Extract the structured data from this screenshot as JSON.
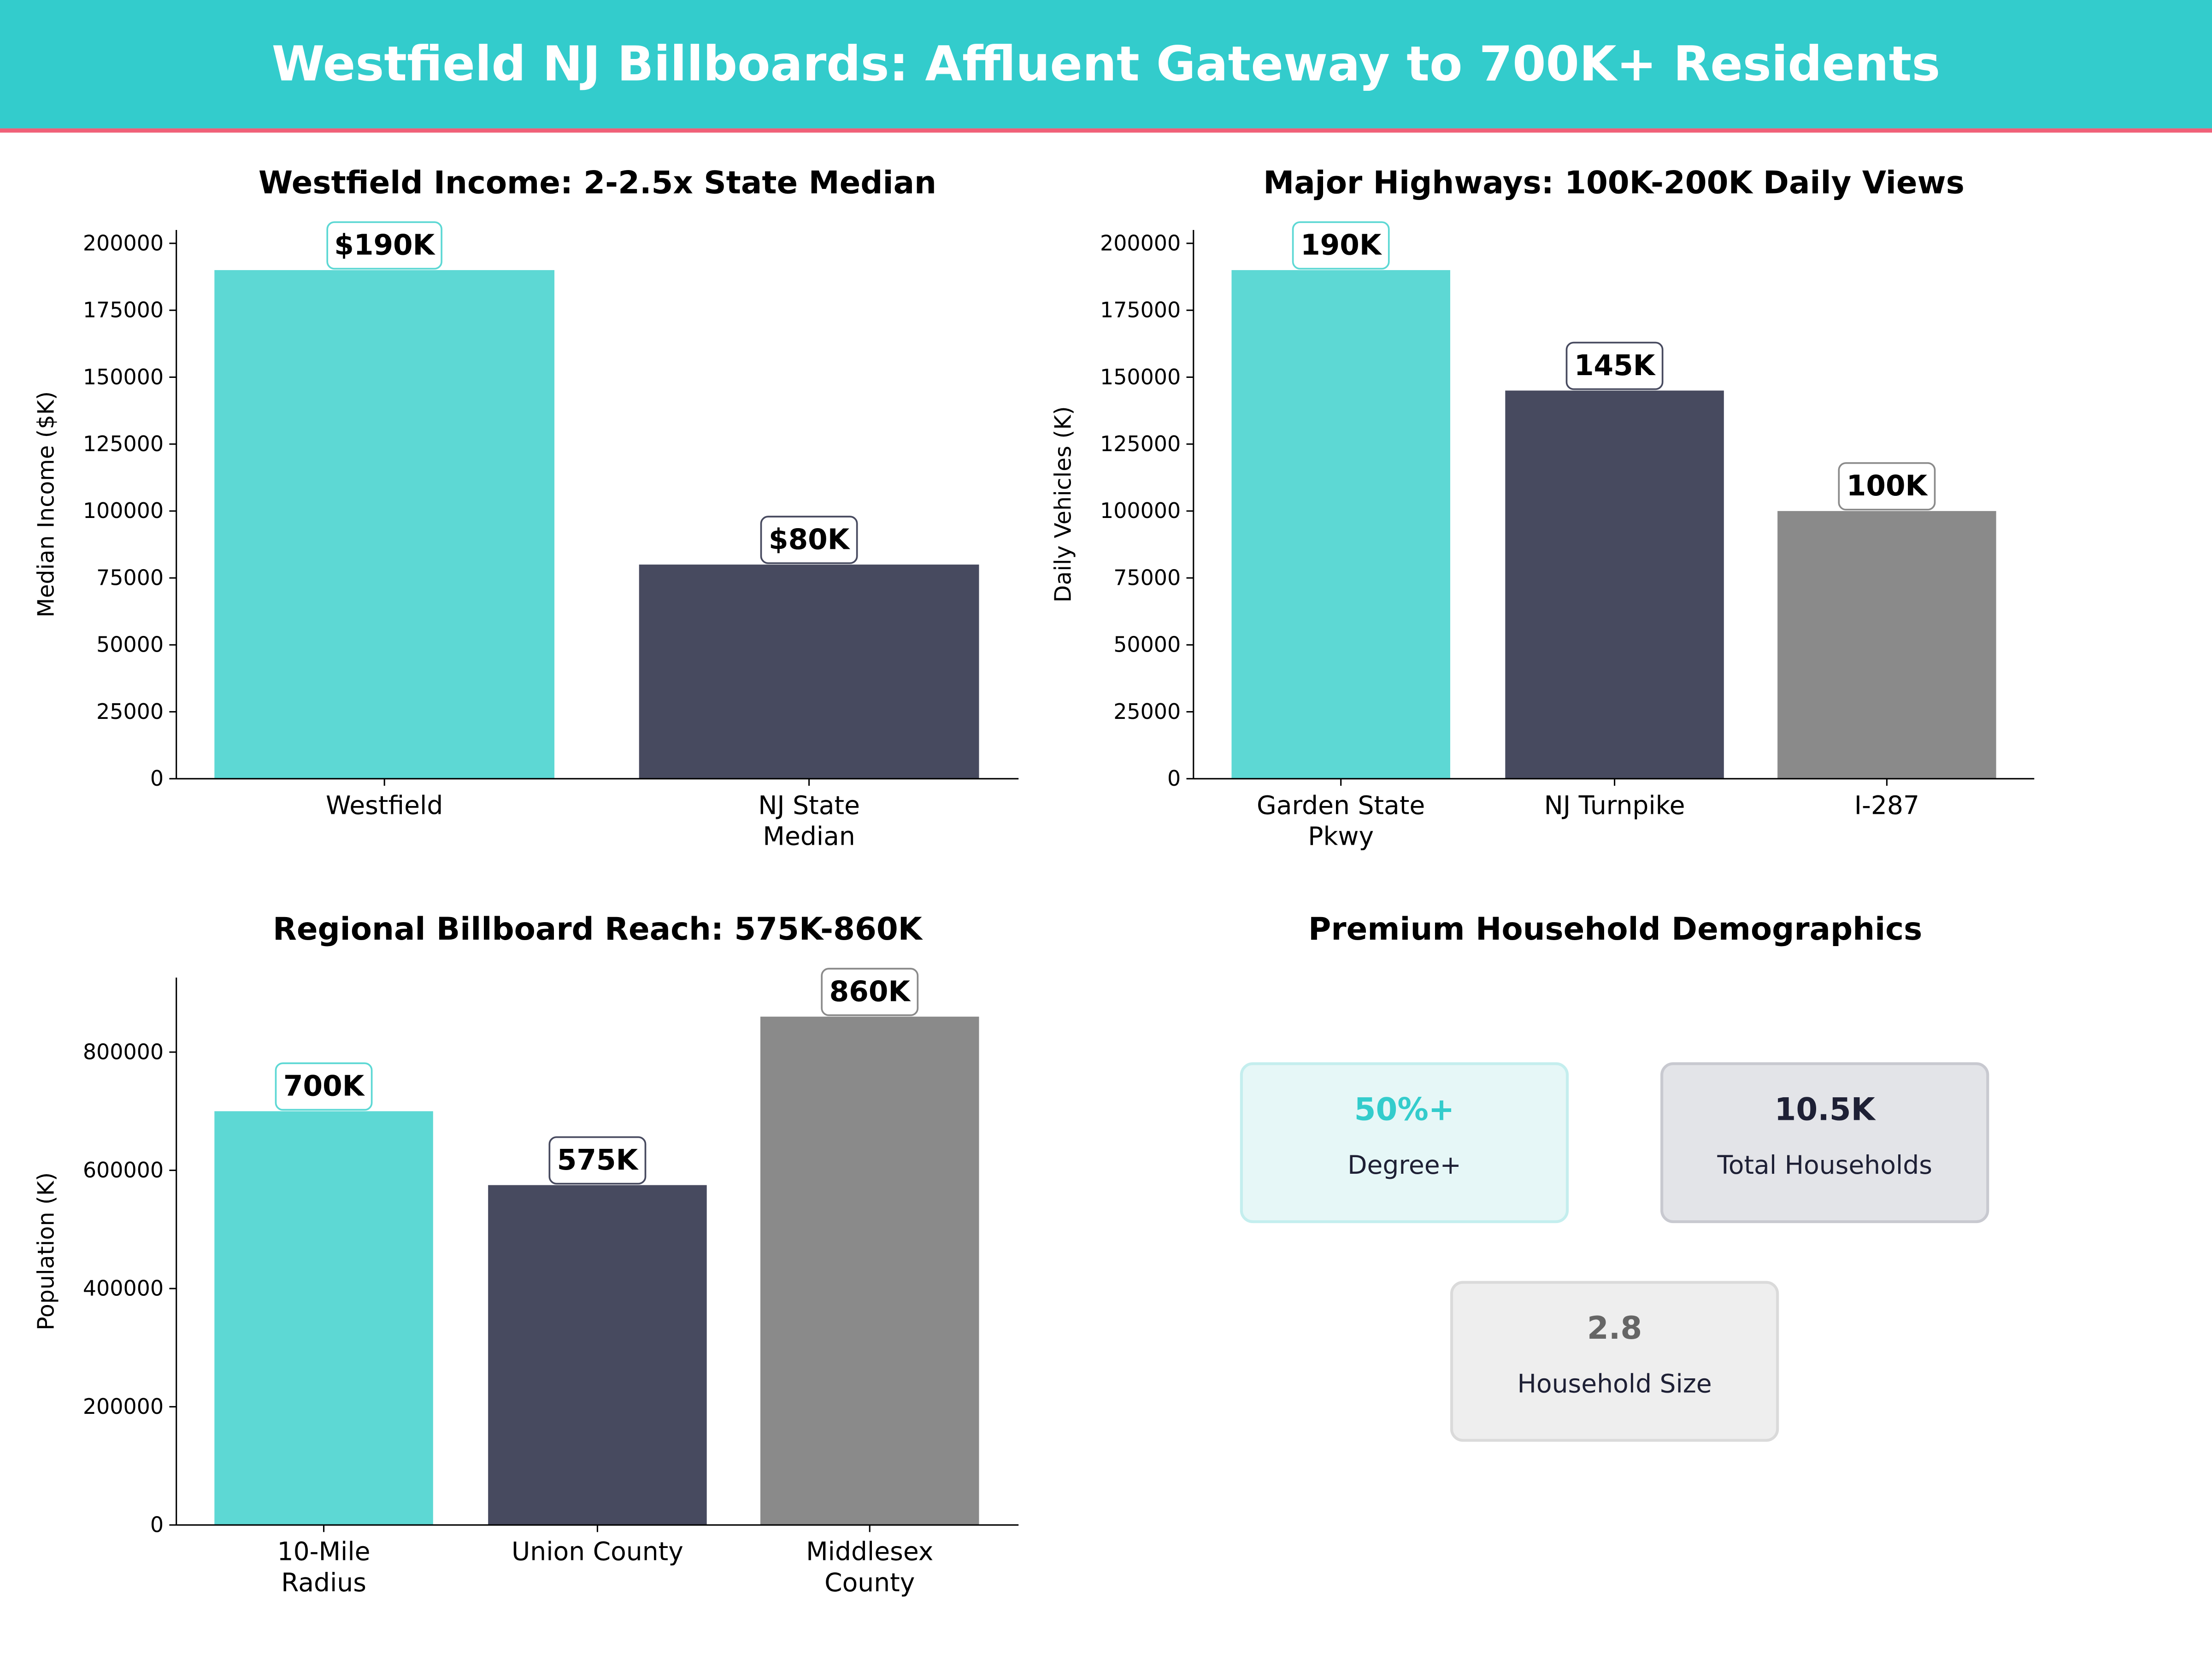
{
  "header": {
    "title": "Westfield NJ Billboards: Affluent Gateway to 700K+ Residents",
    "bg_color": "#33cccc",
    "accent_line_color": "#f06078"
  },
  "chart_data": [
    {
      "type": "bar",
      "title": "Westfield Income: 2-2.5x State Median",
      "ylabel": "Median Income ($K)",
      "categories": [
        [
          "Westfield"
        ],
        [
          "NJ State",
          "Median"
        ]
      ],
      "values": [
        190000,
        80000
      ],
      "data_labels": [
        "$190K",
        "$80K"
      ],
      "colors": [
        "#5dd8d4",
        "#474a5f"
      ],
      "yticks": [
        0,
        25000,
        50000,
        75000,
        100000,
        125000,
        150000,
        175000,
        200000
      ],
      "ylim": [
        0,
        205000
      ]
    },
    {
      "type": "bar",
      "title": "Major Highways: 100K-200K Daily Views",
      "ylabel": "Daily Vehicles (K)",
      "categories": [
        [
          "Garden State",
          "Pkwy"
        ],
        [
          "NJ Turnpike"
        ],
        [
          "I-287"
        ]
      ],
      "values": [
        190000,
        145000,
        100000
      ],
      "data_labels": [
        "190K",
        "145K",
        "100K"
      ],
      "colors": [
        "#5dd8d4",
        "#474a5f",
        "#8a8a8a"
      ],
      "yticks": [
        0,
        25000,
        50000,
        75000,
        100000,
        125000,
        150000,
        175000,
        200000
      ],
      "ylim": [
        0,
        205000
      ]
    },
    {
      "type": "bar",
      "title": "Regional Billboard Reach: 575K-860K",
      "ylabel": "Population (K)",
      "categories": [
        [
          "10-Mile",
          "Radius"
        ],
        [
          "Union County"
        ],
        [
          "Middlesex",
          "County"
        ]
      ],
      "values": [
        700000,
        575000,
        860000
      ],
      "data_labels": [
        "700K",
        "575K",
        "860K"
      ],
      "colors": [
        "#5dd8d4",
        "#474a5f",
        "#8a8a8a"
      ],
      "yticks": [
        0,
        200000,
        400000,
        600000,
        800000
      ],
      "ylim": [
        0,
        926000
      ]
    }
  ],
  "demographics": {
    "title": "Premium Household Demographics",
    "cards": [
      {
        "value": "50%+",
        "label": "Degree+",
        "value_color": "#33cccc",
        "bg": "#e6f7f7",
        "border": "#c4eeee"
      },
      {
        "value": "10.5K",
        "label": "Total Households",
        "value_color": "#1e2035",
        "bg": "#e3e4e8",
        "border": "#c8c9d0"
      },
      {
        "value": "2.8",
        "label": "Household Size",
        "value_color": "#666666",
        "bg": "#eeeeee",
        "border": "#dadada"
      }
    ]
  }
}
